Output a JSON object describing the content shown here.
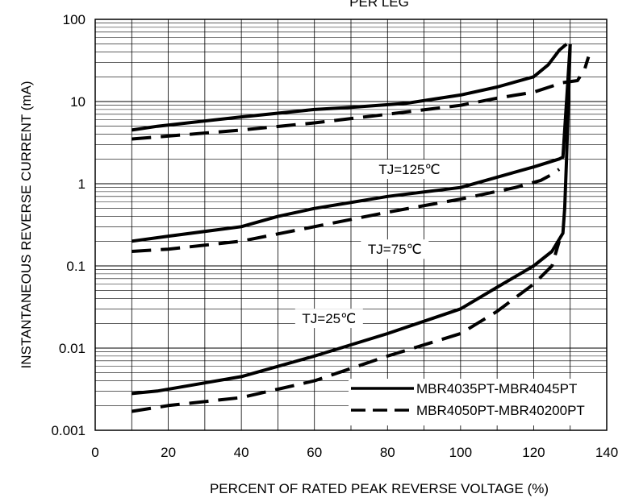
{
  "chart_data": {
    "type": "line",
    "title": "PER LEG",
    "xlabel": "PERCENT OF RATED PEAK REVERSE VOLTAGE (%)",
    "ylabel": "INSTANTANEOUS REVERSE CURRENT (mA)",
    "xlim": [
      0,
      140
    ],
    "ylim": [
      0.001,
      100
    ],
    "yscale": "log",
    "x_ticks": [
      0,
      20,
      40,
      60,
      80,
      100,
      120,
      140
    ],
    "x_tick_labels": [
      "0",
      "20",
      "40",
      "60",
      "80",
      "100",
      "120",
      "140"
    ],
    "y_ticks": [
      0.001,
      0.01,
      0.1,
      1,
      10,
      100
    ],
    "y_tick_labels": [
      "0.001",
      "0.01",
      "0.1",
      "1",
      "10",
      "100"
    ],
    "grid": true,
    "legend_position": "bottom-right",
    "legend": [
      {
        "label": "MBR4035PT-MBR4045PT",
        "style": "solid"
      },
      {
        "label": "MBR4050PT-MBR40200PT",
        "style": "dashed"
      }
    ],
    "annotations": [
      {
        "text": "TJ=125℃",
        "x": 86,
        "y": 1.5
      },
      {
        "text": "TJ=75℃",
        "x": 82,
        "y": 0.16
      },
      {
        "text": "TJ=25℃",
        "x": 64,
        "y": 0.023
      }
    ],
    "series": [
      {
        "group": "MBR4035PT-MBR4045PT",
        "condition": "TJ=125℃",
        "style": "solid",
        "x": [
          10,
          17,
          40,
          60,
          70,
          85,
          100,
          110,
          120,
          124,
          127,
          129
        ],
        "y": [
          4.5,
          5,
          6.5,
          8,
          8.5,
          9.5,
          12,
          15,
          20,
          28,
          42,
          50
        ]
      },
      {
        "group": "MBR4050PT-MBR40200PT",
        "condition": "TJ=125℃",
        "style": "dashed",
        "x": [
          10,
          17,
          40,
          60,
          80,
          100,
          110,
          120,
          128,
          132,
          134,
          135
        ],
        "y": [
          3.5,
          3.7,
          4.5,
          5.5,
          7,
          9,
          11,
          13,
          17,
          18,
          25,
          35
        ]
      },
      {
        "group": "MBR4035PT-MBR4045PT",
        "condition": "TJ=75℃",
        "style": "solid",
        "x": [
          10,
          20,
          40,
          50,
          60,
          80,
          100,
          110,
          120,
          127,
          128,
          129,
          130
        ],
        "y": [
          0.2,
          0.23,
          0.3,
          0.4,
          0.5,
          0.7,
          0.9,
          1.2,
          1.6,
          2,
          2.1,
          10,
          50
        ]
      },
      {
        "group": "MBR4050PT-MBR40200PT",
        "condition": "TJ=75℃",
        "style": "dashed",
        "x": [
          10,
          20,
          40,
          60,
          80,
          100,
          115,
          122,
          125,
          127
        ],
        "y": [
          0.15,
          0.16,
          0.2,
          0.3,
          0.45,
          0.65,
          0.9,
          1.1,
          1.3,
          1.5
        ]
      },
      {
        "group": "MBR4035PT-MBR4045PT",
        "condition": "TJ=25℃",
        "style": "solid",
        "x": [
          10,
          17,
          40,
          60,
          80,
          100,
          110,
          120,
          125,
          128,
          128.5,
          129,
          129.5,
          130
        ],
        "y": [
          0.0028,
          0.003,
          0.0045,
          0.008,
          0.015,
          0.03,
          0.055,
          0.1,
          0.15,
          0.25,
          0.5,
          2,
          10,
          50
        ]
      },
      {
        "group": "MBR4050PT-MBR40200PT",
        "condition": "TJ=25℃",
        "style": "dashed",
        "x": [
          10,
          20,
          40,
          60,
          80,
          100,
          110,
          120,
          125,
          127
        ],
        "y": [
          0.0017,
          0.002,
          0.0025,
          0.004,
          0.008,
          0.015,
          0.028,
          0.06,
          0.1,
          0.2
        ]
      }
    ]
  }
}
